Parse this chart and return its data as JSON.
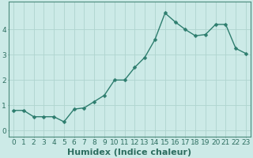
{
  "x": [
    0,
    1,
    2,
    3,
    4,
    5,
    6,
    7,
    8,
    9,
    10,
    11,
    12,
    13,
    14,
    15,
    16,
    17,
    18,
    19,
    20,
    21,
    22,
    23
  ],
  "y": [
    0.8,
    0.8,
    0.55,
    0.55,
    0.55,
    0.35,
    0.85,
    0.9,
    1.15,
    1.4,
    2.0,
    2.0,
    2.5,
    2.9,
    3.6,
    4.65,
    4.3,
    4.0,
    3.75,
    3.8,
    4.2,
    4.2,
    3.25,
    3.05
  ],
  "line_color": "#2d7d6e",
  "marker": "D",
  "marker_size": 2.5,
  "line_width": 1.0,
  "bg_color": "#cceae7",
  "grid_color": "#afd4cf",
  "xlabel": "Humidex (Indice chaleur)",
  "xlabel_fontsize": 8,
  "ylim": [
    -0.25,
    5.1
  ],
  "xlim": [
    -0.5,
    23.5
  ],
  "yticks": [
    0,
    1,
    2,
    3,
    4
  ],
  "xticks": [
    0,
    1,
    2,
    3,
    4,
    5,
    6,
    7,
    8,
    9,
    10,
    11,
    12,
    13,
    14,
    15,
    16,
    17,
    18,
    19,
    20,
    21,
    22,
    23
  ],
  "tick_fontsize": 6.5,
  "axis_color": "#2d6e60",
  "spine_color": "#4a8a7a"
}
